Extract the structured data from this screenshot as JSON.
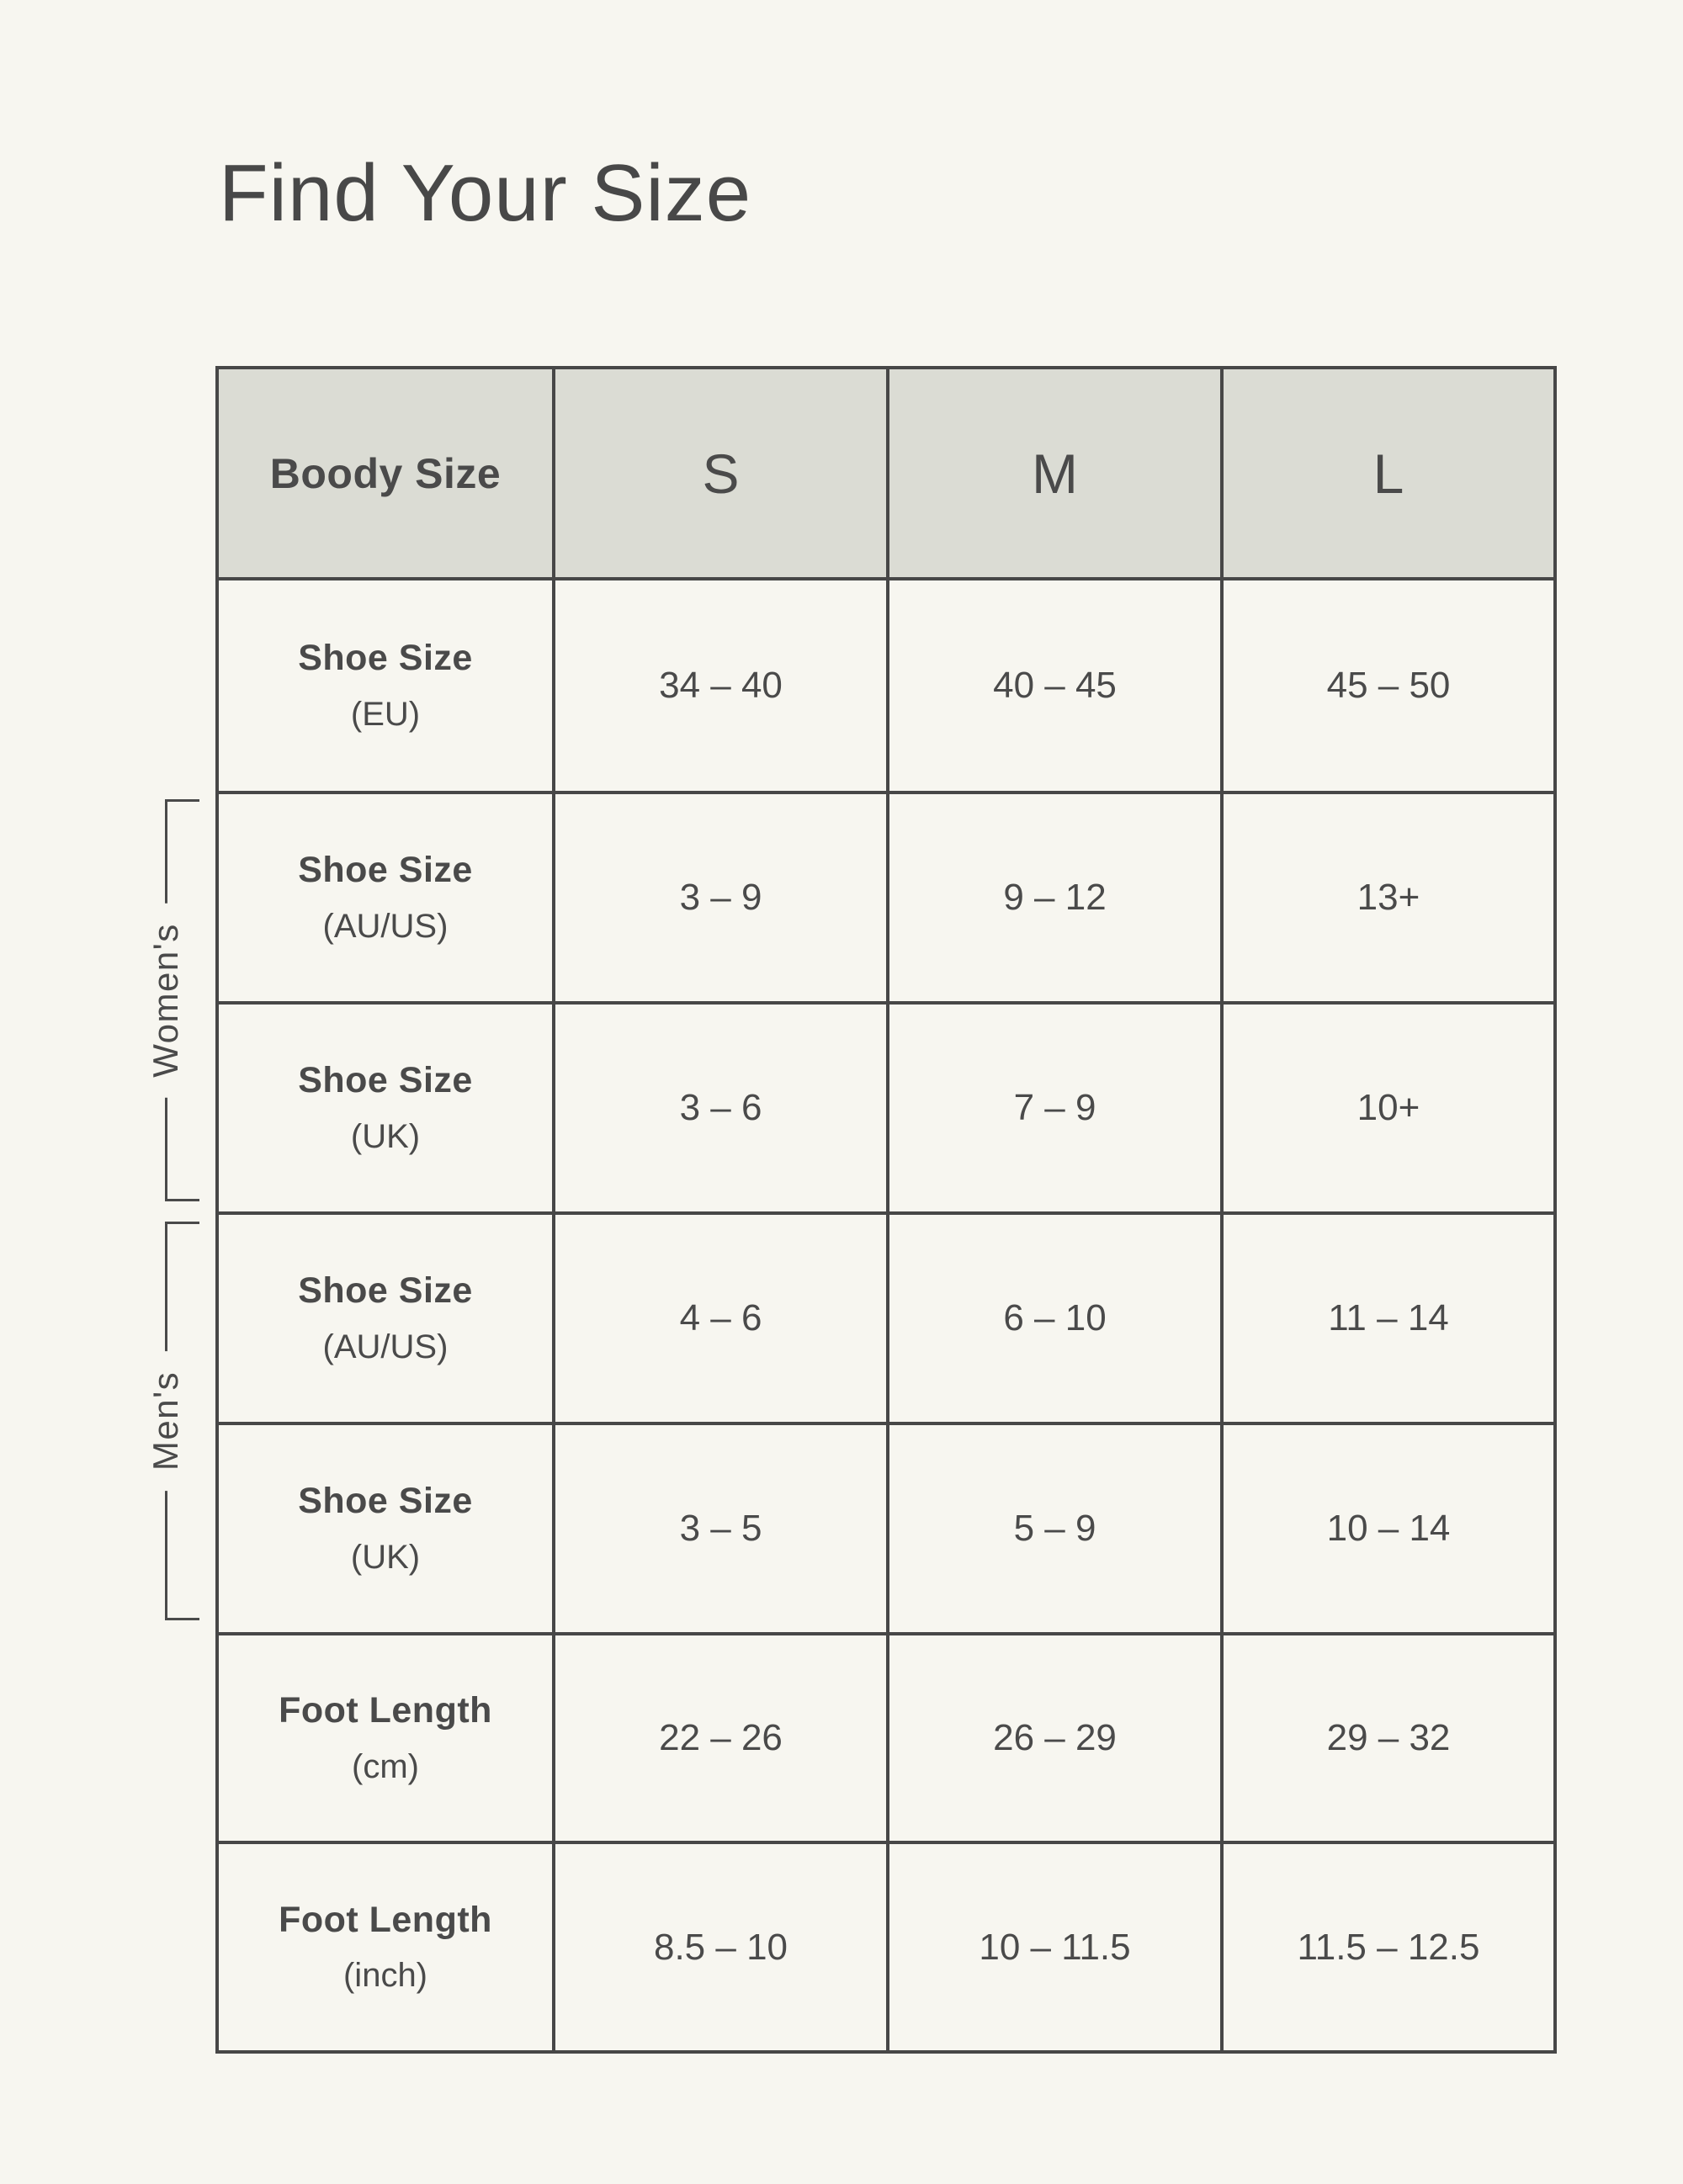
{
  "page": {
    "title": "Find Your Size"
  },
  "table": {
    "header": {
      "col0": "Boody Size",
      "sizes": [
        "S",
        "M",
        "L"
      ]
    },
    "rows": [
      {
        "label": "Shoe Size",
        "unit": "(EU)",
        "group": "",
        "values": [
          "34 – 40",
          "40 – 45",
          "45 – 50"
        ]
      },
      {
        "label": "Shoe Size",
        "unit": "(AU/US)",
        "group": "Women's",
        "values": [
          "3 – 9",
          "9 – 12",
          "13+"
        ]
      },
      {
        "label": "Shoe Size",
        "unit": "(UK)",
        "group": "Women's",
        "values": [
          "3 – 6",
          "7 – 9",
          "10+"
        ]
      },
      {
        "label": "Shoe Size",
        "unit": "(AU/US)",
        "group": "Men's",
        "values": [
          "4 – 6",
          "6 – 10",
          "11 – 14"
        ]
      },
      {
        "label": "Shoe Size",
        "unit": "(UK)",
        "group": "Men's",
        "values": [
          "3 – 5",
          "5 – 9",
          "10 – 14"
        ]
      },
      {
        "label": "Foot Length",
        "unit": "(cm)",
        "group": "",
        "values": [
          "22 – 26",
          "26 – 29",
          "29 – 32"
        ]
      },
      {
        "label": "Foot Length",
        "unit": "(inch)",
        "group": "",
        "values": [
          "8.5 – 10",
          "10 – 11.5",
          "11.5 – 12.5"
        ]
      }
    ],
    "group_labels": {
      "womens": "Women's",
      "mens": "Men's"
    }
  },
  "chart_data": {
    "type": "table",
    "title": "Find Your Size",
    "columns": [
      "Boody Size",
      "S",
      "M",
      "L"
    ],
    "rows": [
      [
        "Shoe Size (EU)",
        "34 – 40",
        "40 – 45",
        "45 – 50"
      ],
      [
        "Shoe Size (AU/US)",
        "3 – 9",
        "9 – 12",
        "13+"
      ],
      [
        "Shoe Size (UK)",
        "3 – 6",
        "7 – 9",
        "10+"
      ],
      [
        "Shoe Size (AU/US)",
        "4 – 6",
        "6 – 10",
        "11 – 14"
      ],
      [
        "Shoe Size (UK)",
        "3 – 5",
        "5 – 9",
        "10 – 14"
      ],
      [
        "Foot Length (cm)",
        "22 – 26",
        "26 – 29",
        "29 – 32"
      ],
      [
        "Foot Length (inch)",
        "8.5 – 10",
        "10 – 11.5",
        "11.5 – 12.5"
      ]
    ],
    "row_groups": [
      {
        "label": "Women's",
        "rows": [
          "Shoe Size (AU/US)",
          "Shoe Size (UK)"
        ]
      },
      {
        "label": "Men's",
        "rows": [
          "Shoe Size (AU/US)",
          "Shoe Size (UK)"
        ]
      }
    ]
  },
  "colors": {
    "page_background": "#f7f6f0",
    "header_background": "#dbdcd4",
    "border": "#474747",
    "text": "#4a4a4a"
  }
}
